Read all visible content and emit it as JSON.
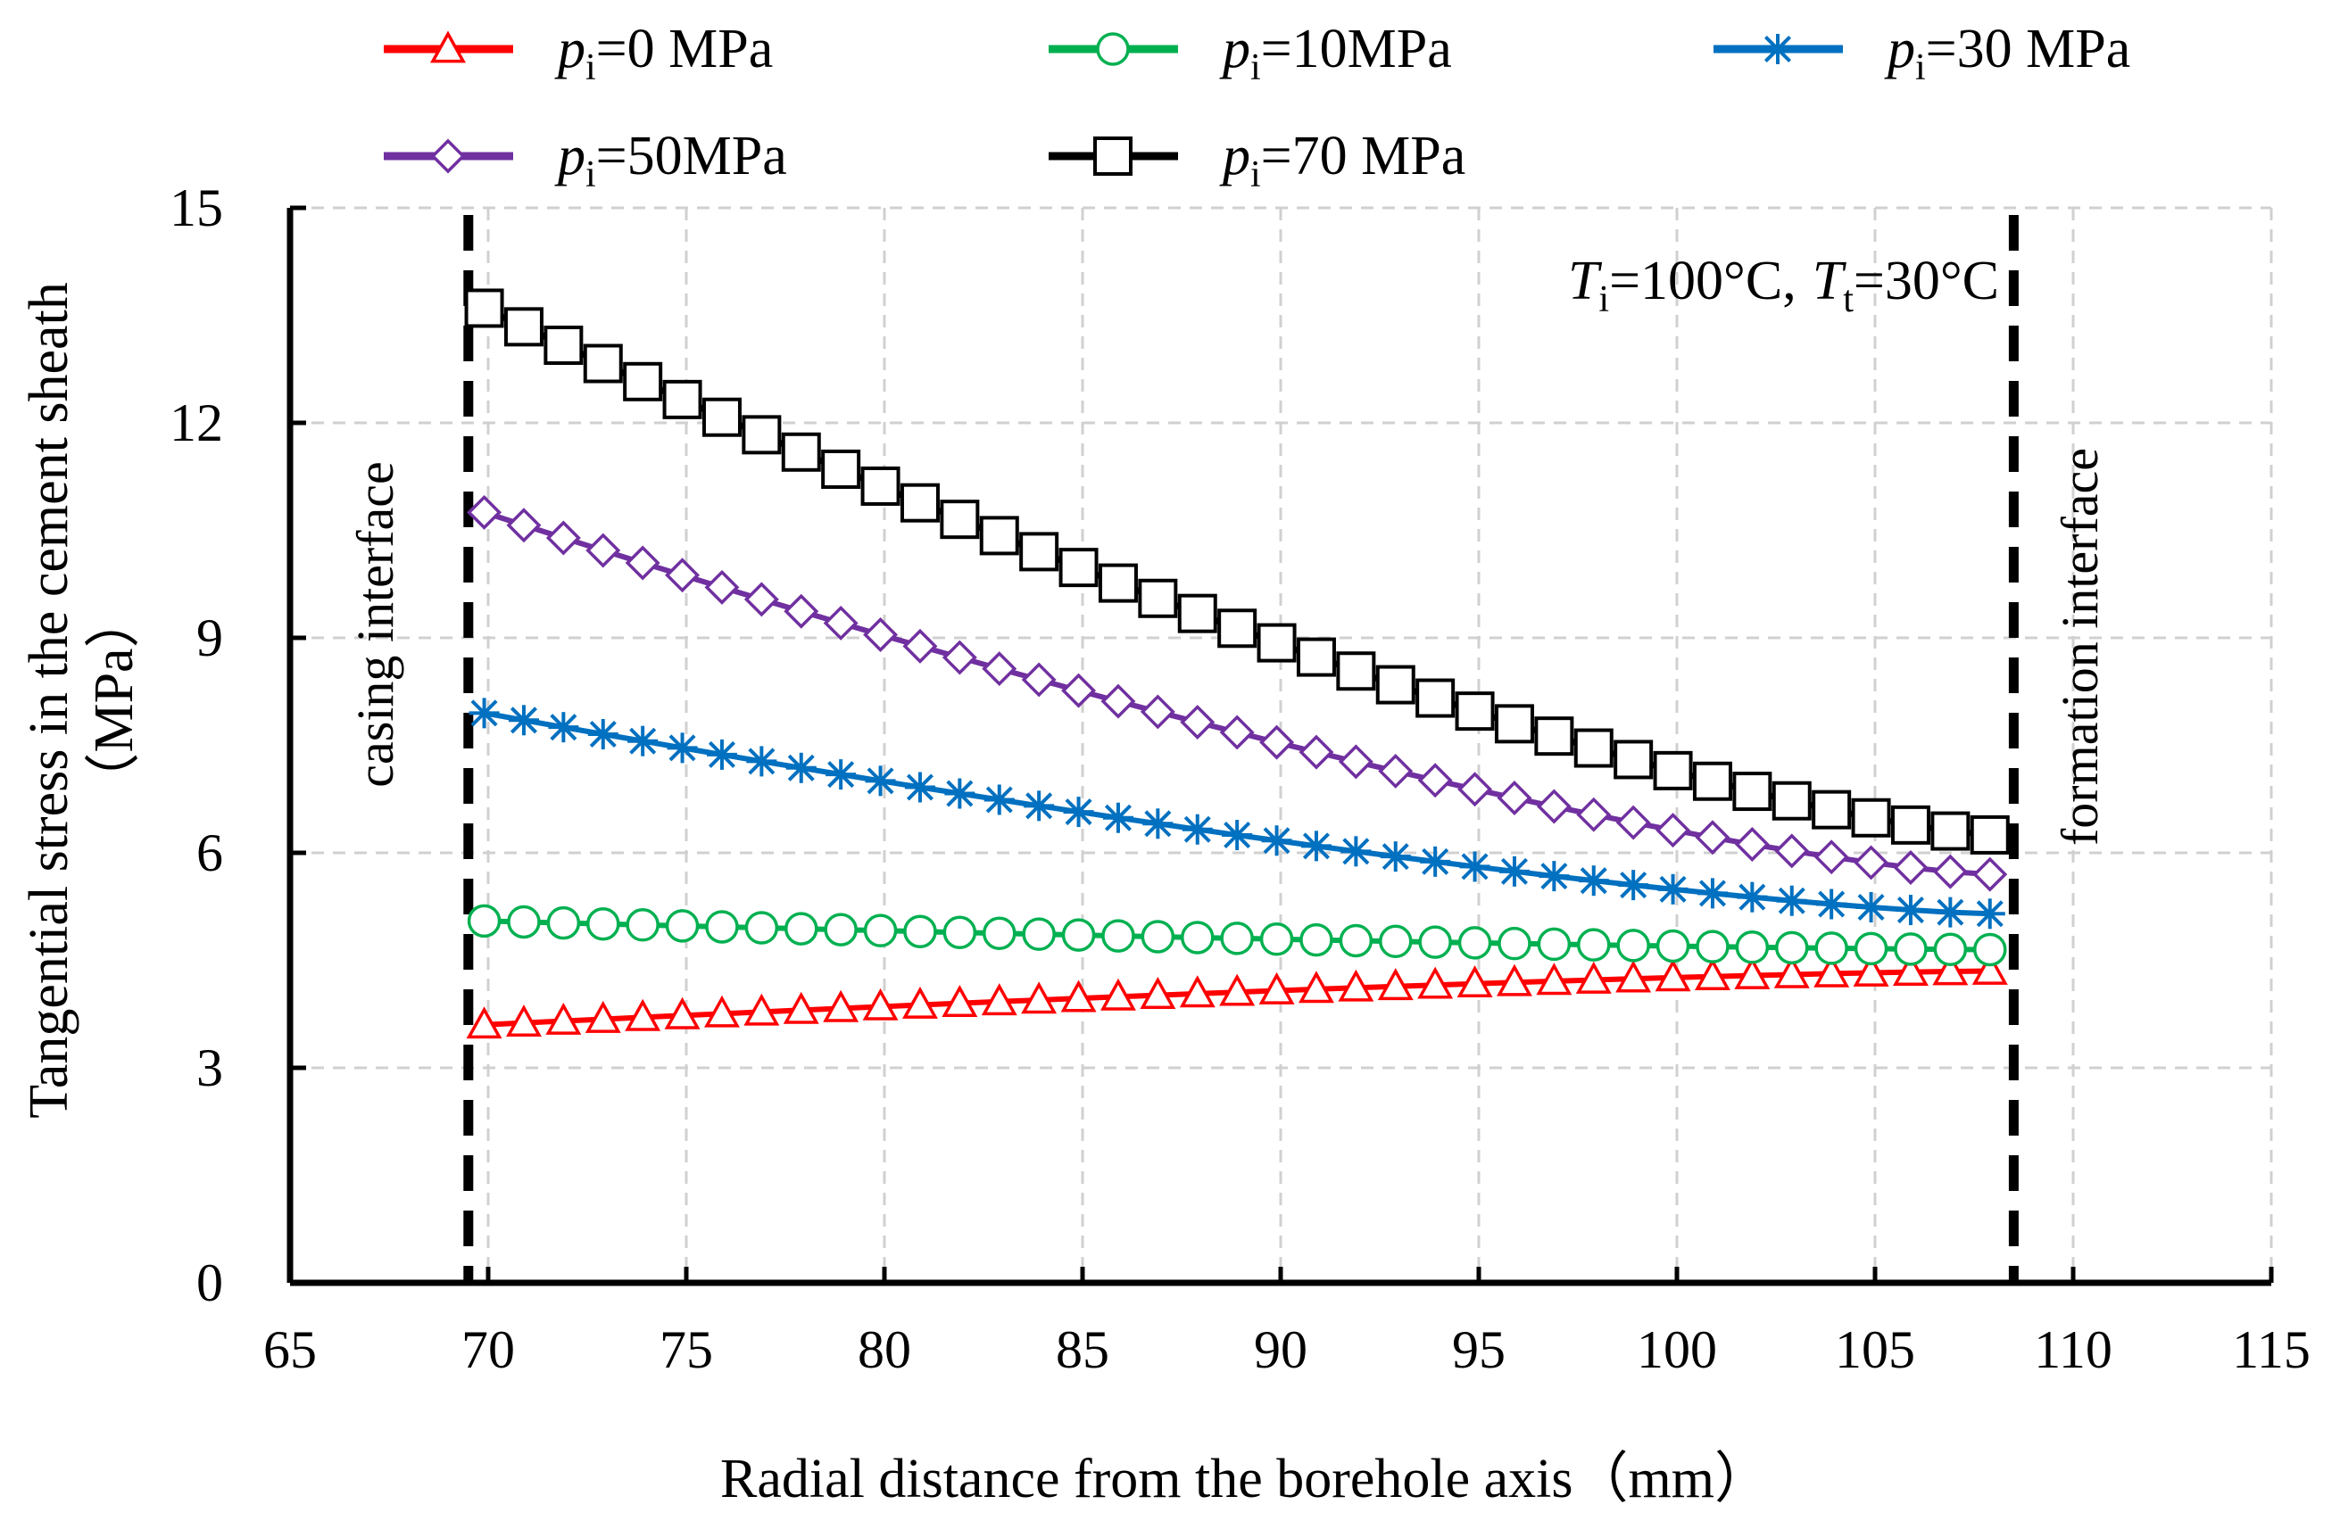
{
  "chart_data": {
    "type": "line",
    "xlabel": "Radial distance from  the borehole axis（mm）",
    "ylabel_line1": "Tangential stress in the cement sheath",
    "ylabel_line2": "（MPa）",
    "xlim": [
      65,
      115
    ],
    "ylim": [
      0,
      15
    ],
    "xticks": [
      65,
      70,
      75,
      80,
      85,
      90,
      95,
      100,
      105,
      110,
      115
    ],
    "yticks": [
      0,
      3,
      6,
      9,
      12,
      15
    ],
    "grid": true,
    "legend_position": "top",
    "annotation": {
      "t_sym": "T",
      "i_sub": "i",
      "t_sub": "t",
      "ti_value": "=100°C,",
      "tt_value": "=30°C"
    },
    "interfaces": [
      {
        "name": "casing  interface",
        "x": 69.5
      },
      {
        "name": "formation  interface",
        "x": 108.5
      }
    ],
    "x_start": 69.9,
    "x_step": 1.0,
    "num_points": 39,
    "series": [
      {
        "label_prefix": "p",
        "label_sub": "i",
        "label_value": "=0 MPa",
        "color": "#ff0000",
        "marker": "triangle",
        "start": 3.6,
        "end": 4.35
      },
      {
        "label_prefix": "p",
        "label_sub": "i",
        "label_value": "=10MPa",
        "color": "#00b050",
        "marker": "circle",
        "start": 5.05,
        "end": 4.65
      },
      {
        "label_prefix": "p",
        "label_sub": "i",
        "label_value": "=30 MPa",
        "color": "#0070c0",
        "marker": "star",
        "start": 7.95,
        "end": 5.15
      },
      {
        "label_prefix": "p",
        "label_sub": "i",
        "label_value": "=50MPa",
        "color": "#7030a0",
        "marker": "diamond",
        "start": 10.75,
        "end": 5.7
      },
      {
        "label_prefix": "p",
        "label_sub": "i",
        "label_value": "=70 MPa",
        "color": "#000000",
        "marker": "square",
        "start": 13.6,
        "end": 6.25
      }
    ]
  }
}
